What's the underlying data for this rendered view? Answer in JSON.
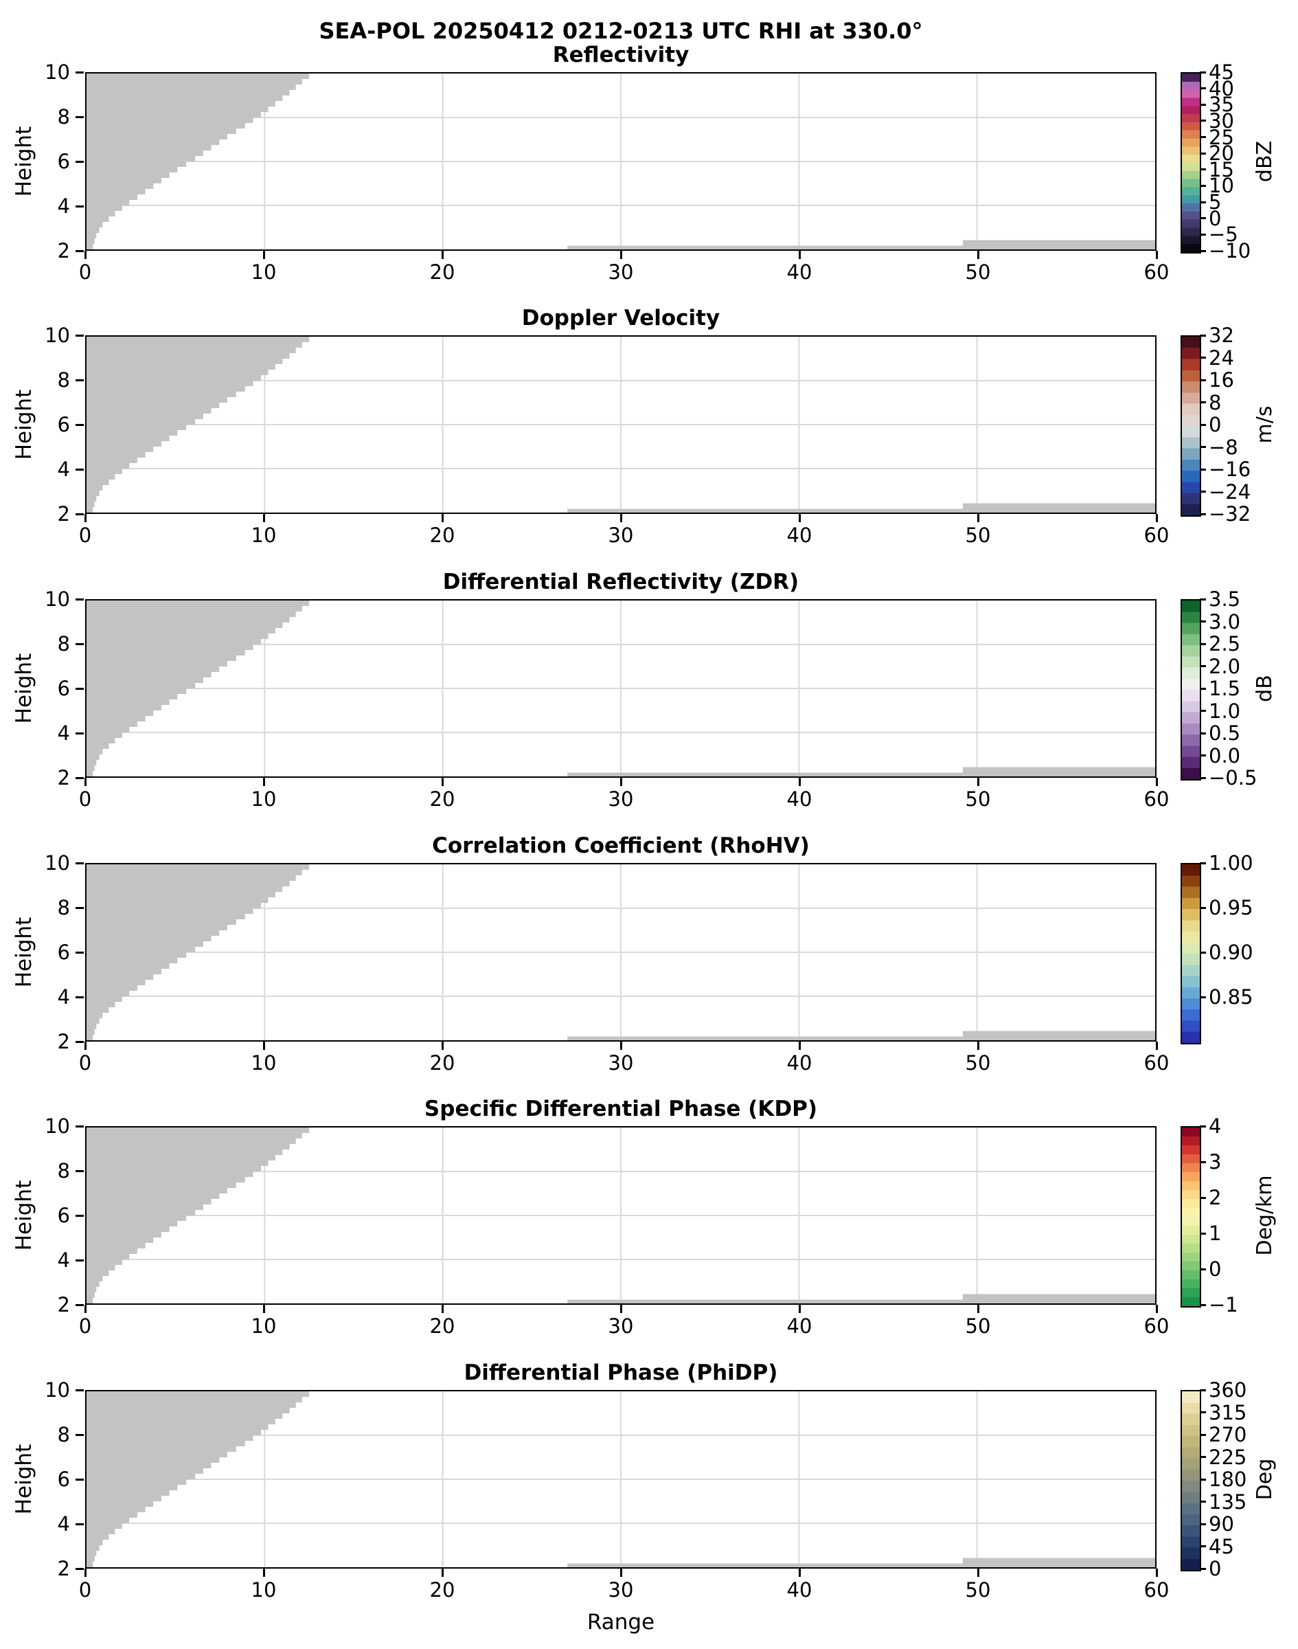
{
  "chart_data": {
    "type": "heatmap",
    "subtype": "radar-rhi-multipanel",
    "suptitle": "SEA-POL 20250412 0212-0213 UTC RHI at 330.0°",
    "x": {
      "label": "Range",
      "lim": [
        0,
        60
      ],
      "tick_values": [
        0,
        10,
        20,
        30,
        40,
        50,
        60
      ],
      "tick_labels": [
        "0",
        "10",
        "20",
        "30",
        "40",
        "50",
        "60"
      ]
    },
    "y": {
      "label": "Height",
      "lim": [
        2,
        10
      ],
      "tick_values": [
        2,
        4,
        6,
        8,
        10
      ],
      "tick_labels": [
        "2",
        "4",
        "6",
        "8",
        "10"
      ]
    },
    "grid": {
      "x_values": [
        10,
        20,
        30,
        40,
        50
      ],
      "y_values": [
        4,
        6,
        8
      ]
    },
    "style": {
      "mask_color": "#c3c3c3",
      "grid_color": "#d9d9d9",
      "spine_color": "#000000",
      "background": "#ffffff",
      "text_color": "#000000"
    },
    "mask": {
      "description": "gray no-data regions identical in all six panels",
      "boundary_points": [
        [
          0.35,
          2
        ],
        [
          0.45,
          2.25
        ],
        [
          0.55,
          2.5
        ],
        [
          0.72,
          2.75
        ],
        [
          0.9,
          3
        ],
        [
          1.25,
          3.25
        ],
        [
          1.6,
          3.5
        ],
        [
          2.0,
          3.75
        ],
        [
          2.4,
          4
        ],
        [
          2.85,
          4.25
        ],
        [
          3.3,
          4.5
        ],
        [
          3.75,
          4.75
        ],
        [
          4.2,
          5
        ],
        [
          4.65,
          5.25
        ],
        [
          5.1,
          5.5
        ],
        [
          5.6,
          5.75
        ],
        [
          6.1,
          6
        ],
        [
          6.55,
          6.25
        ],
        [
          7.0,
          6.5
        ],
        [
          7.45,
          6.75
        ],
        [
          7.9,
          7
        ],
        [
          8.4,
          7.25
        ],
        [
          8.9,
          7.5
        ],
        [
          9.35,
          7.75
        ],
        [
          9.8,
          8
        ],
        [
          10.2,
          8.25
        ],
        [
          10.6,
          8.5
        ],
        [
          11.0,
          8.75
        ],
        [
          11.4,
          9
        ],
        [
          11.75,
          9.25
        ],
        [
          12.1,
          9.5
        ],
        [
          12.5,
          9.75
        ],
        [
          12.9,
          10
        ]
      ],
      "strips": [
        {
          "x": [
            27.0,
            49.2
          ],
          "y": [
            2,
            2.17
          ]
        },
        {
          "x": [
            49.2,
            60.0
          ],
          "y": [
            2,
            2.42
          ]
        }
      ]
    },
    "panels": [
      {
        "title": "Reflectivity",
        "unit": "dBZ",
        "cbar": {
          "range": [
            -10,
            45
          ],
          "tick_values": [
            45,
            40,
            35,
            30,
            25,
            20,
            15,
            10,
            5,
            0,
            -5,
            -10
          ],
          "tick_labels": [
            "45",
            "40",
            "35",
            "30",
            "25",
            "20",
            "15",
            "10",
            "5",
            "0",
            "−5",
            "−10"
          ],
          "colors": [
            "#0a070e",
            "#1c1530",
            "#312850",
            "#443a6d",
            "#565189",
            "#4f74a4",
            "#459ba6",
            "#52b29a",
            "#74c08a",
            "#a3d08a",
            "#d2df92",
            "#e9dc8c",
            "#e9c276",
            "#e5a35e",
            "#dd8150",
            "#cf5a42",
            "#c23a4d",
            "#b31f63",
            "#c12e85",
            "#cf63ab",
            "#b06ab5",
            "#47215c"
          ]
        }
      },
      {
        "title": "Doppler Velocity",
        "unit": "m/s",
        "cbar": {
          "range": [
            -32,
            32
          ],
          "tick_values": [
            32,
            24,
            16,
            8,
            0,
            -8,
            -16,
            -24,
            -32
          ],
          "tick_labels": [
            "32",
            "24",
            "16",
            "8",
            "0",
            "−8",
            "−16",
            "−24",
            "−32"
          ],
          "colors": [
            "#1c2150",
            "#2c3377",
            "#2847ae",
            "#2a68c0",
            "#4a87bb",
            "#7ba6bd",
            "#a9c2cb",
            "#d3dade",
            "#e1d6cf",
            "#e3cabe",
            "#d8ab99",
            "#cc8a6e",
            "#c05f3c",
            "#ad3a28",
            "#7e1a20",
            "#451019"
          ]
        }
      },
      {
        "title": "Differential Reflectivity (ZDR)",
        "unit": "dB",
        "cbar": {
          "range": [
            -0.5,
            3.5
          ],
          "tick_values": [
            3.5,
            3.0,
            2.5,
            2.0,
            1.5,
            1.0,
            0.5,
            0.0,
            -0.5
          ],
          "tick_labels": [
            "3.5",
            "3.0",
            "2.5",
            "2.0",
            "1.5",
            "1.0",
            "0.5",
            "0.0",
            "−0.5"
          ],
          "colors": [
            "#3a0f4a",
            "#582a77",
            "#744a95",
            "#8e6aad",
            "#a98bc2",
            "#c2aad3",
            "#d8c8e2",
            "#e9dfee",
            "#f0f0ef",
            "#dfecd8",
            "#c4e2bc",
            "#a3d39e",
            "#7cbf7f",
            "#52a45f",
            "#2b8542",
            "#0e6329"
          ]
        }
      },
      {
        "title": "Correlation Coefficient (RhoHV)",
        "unit": "",
        "cbar": {
          "range": [
            0.8,
            1.0
          ],
          "tick_values": [
            1.0,
            0.95,
            0.9,
            0.85
          ],
          "tick_labels": [
            "1.00",
            "0.95",
            "0.90",
            "0.85"
          ],
          "colors": [
            "#2b31ab",
            "#2e4ec4",
            "#3a6cd4",
            "#4f8cd8",
            "#68aad5",
            "#87c2cf",
            "#a7d4c6",
            "#c3e2bb",
            "#dbeab0",
            "#e9e9a4",
            "#e9d988",
            "#dfbd62",
            "#cb9a3e",
            "#ad7022",
            "#8a430e",
            "#651a04"
          ]
        }
      },
      {
        "title": "Specific Differential Phase (KDP)",
        "unit": "Deg/km",
        "cbar": {
          "range": [
            -1,
            4
          ],
          "tick_values": [
            4,
            3,
            2,
            1,
            0,
            -1
          ],
          "tick_labels": [
            "4",
            "3",
            "2",
            "1",
            "0",
            "−1"
          ],
          "colors": [
            "#17944b",
            "#2ea356",
            "#47b161",
            "#63bd6b",
            "#80c975",
            "#9cd37f",
            "#b6dd88",
            "#cfe692",
            "#e3ee9d",
            "#f1f4aa",
            "#f9f3a8",
            "#fce99b",
            "#fdd985",
            "#fcc271",
            "#f9a65d",
            "#f2834c",
            "#e65c3e",
            "#d33530",
            "#b41a28",
            "#8d0722"
          ]
        }
      },
      {
        "title": "Differential Phase (PhiDP)",
        "unit": "Deg",
        "cbar": {
          "range": [
            0,
            360
          ],
          "tick_values": [
            360,
            315,
            270,
            225,
            180,
            135,
            90,
            45,
            0
          ],
          "tick_labels": [
            "360",
            "315",
            "270",
            "225",
            "180",
            "135",
            "90",
            "45",
            "0"
          ],
          "colors": [
            "#141f4e",
            "#1e3161",
            "#2a436f",
            "#3a547a",
            "#4c6381",
            "#5e7184",
            "#707e83",
            "#828a80",
            "#93957b",
            "#a4a077",
            "#b3ab75",
            "#c1b67a",
            "#cfc285",
            "#ddcf94",
            "#e9dda8",
            "#f3ecc3"
          ]
        }
      }
    ]
  }
}
